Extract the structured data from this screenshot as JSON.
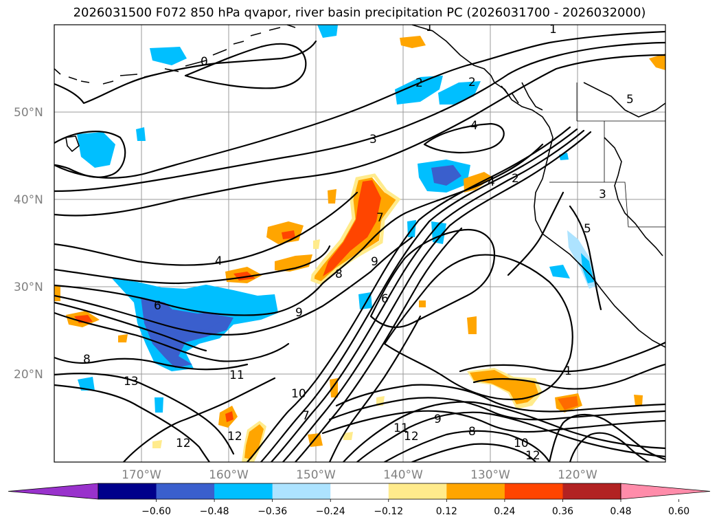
{
  "title": "2026031500 F072 850 hPa qvapor, river basin precipitation PC (2026031700 - 2026032000)",
  "lat_labels": [
    "50°N",
    "40°N",
    "30°N",
    "20°N"
  ],
  "lon_labels": [
    "170°W",
    "160°W",
    "150°W",
    "140°W",
    "130°W",
    "120°W"
  ],
  "colorbar": {
    "colors": [
      "#9932CC",
      "#00008B",
      "#3A5FCD",
      "#00BFFF",
      "#ADE3FF",
      "#FFFFFF",
      "#FFEB8C",
      "#FFA500",
      "#FF4500",
      "#B22222",
      "#FF8CAA"
    ],
    "tick_labels": [
      "−0.60",
      "−0.48",
      "−0.36",
      "−0.24",
      "−0.12",
      "0.12",
      "0.24",
      "0.36",
      "0.48",
      "0.60"
    ]
  },
  "contour_labels": [
    "1",
    "1",
    "0",
    "2",
    "2",
    "3",
    "4",
    "4",
    "5",
    "6",
    "7",
    "8",
    "8",
    "9",
    "9",
    "10",
    "11",
    "11",
    "12",
    "12",
    "12",
    "12",
    "13",
    "1",
    "2",
    "3",
    "4",
    "5",
    "6",
    "7",
    "8",
    "9",
    "10"
  ],
  "colors": {
    "grid": "#9a9a9a",
    "line": "#000000",
    "tick_text": "#808080"
  }
}
